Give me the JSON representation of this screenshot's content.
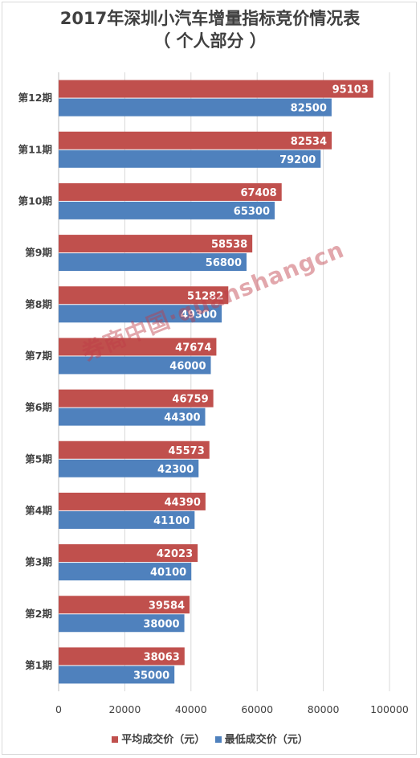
{
  "chart_data": {
    "type": "bar",
    "orientation": "horizontal",
    "title": "2017年深圳小汽车增量指标竞价情况表",
    "subtitle": "（ 个人部分 ）",
    "categories": [
      "第1期",
      "第2期",
      "第3期",
      "第4期",
      "第5期",
      "第6期",
      "第7期",
      "第8期",
      "第9期",
      "第10期",
      "第11期",
      "第12期"
    ],
    "series": [
      {
        "name": "平均成交价（元）",
        "color": "#c0504d",
        "values": [
          38063,
          39584,
          42023,
          44390,
          45573,
          46759,
          47674,
          51282,
          58538,
          67408,
          82534,
          95103
        ]
      },
      {
        "name": "最低成交价（元）",
        "color": "#4f81bd",
        "values": [
          35000,
          38000,
          40100,
          41100,
          42300,
          44300,
          46000,
          49300,
          56800,
          65300,
          79200,
          82500
        ]
      }
    ],
    "xlim": [
      0,
      100000
    ],
    "xticks": [
      "0",
      "20000",
      "40000",
      "60000",
      "80000",
      "100000"
    ],
    "grid": true,
    "legend_position": "bottom"
  },
  "watermark": "券商中国·quanshangcn"
}
